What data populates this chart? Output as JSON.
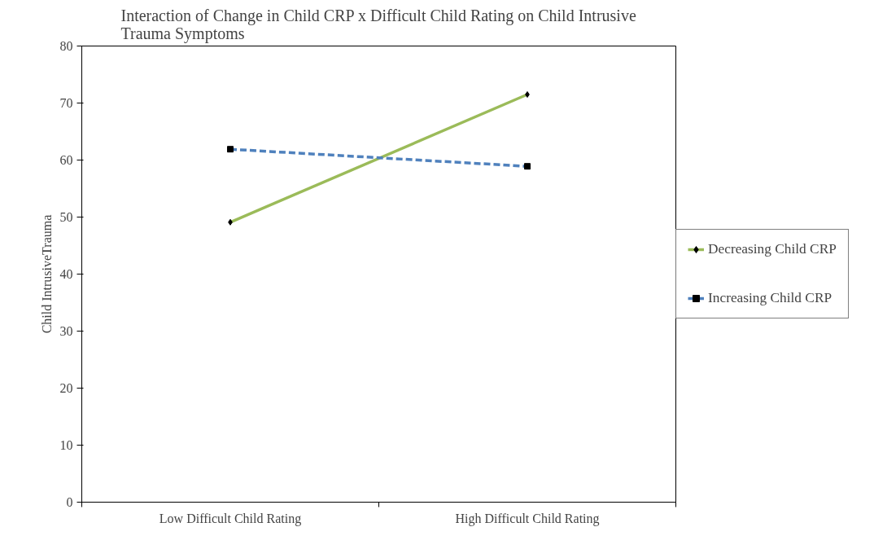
{
  "chart_data": {
    "type": "line",
    "title": "Interaction of Change in Child CRP x Difficult Child Rating on Child Intrusive Trauma Symptoms",
    "ylabel": "Child IntrusiveTrauma",
    "categories": [
      "Low Difficult Child Rating",
      "High Difficult Child Rating"
    ],
    "series": [
      {
        "name": "Decreasing Child CRP",
        "color": "#9bbb59",
        "values": [
          49.1,
          71.5
        ],
        "marker": "diamond",
        "line_style": "solid"
      },
      {
        "name": "Increasing Child CRP",
        "color": "#4f81bd",
        "values": [
          61.9,
          58.9
        ],
        "marker": "square",
        "line_style": "dashed"
      }
    ],
    "ylim": [
      0,
      80
    ],
    "yticks": [
      0,
      10,
      20,
      30,
      40,
      50,
      60,
      70,
      80
    ],
    "grid": false,
    "legend": "right"
  }
}
